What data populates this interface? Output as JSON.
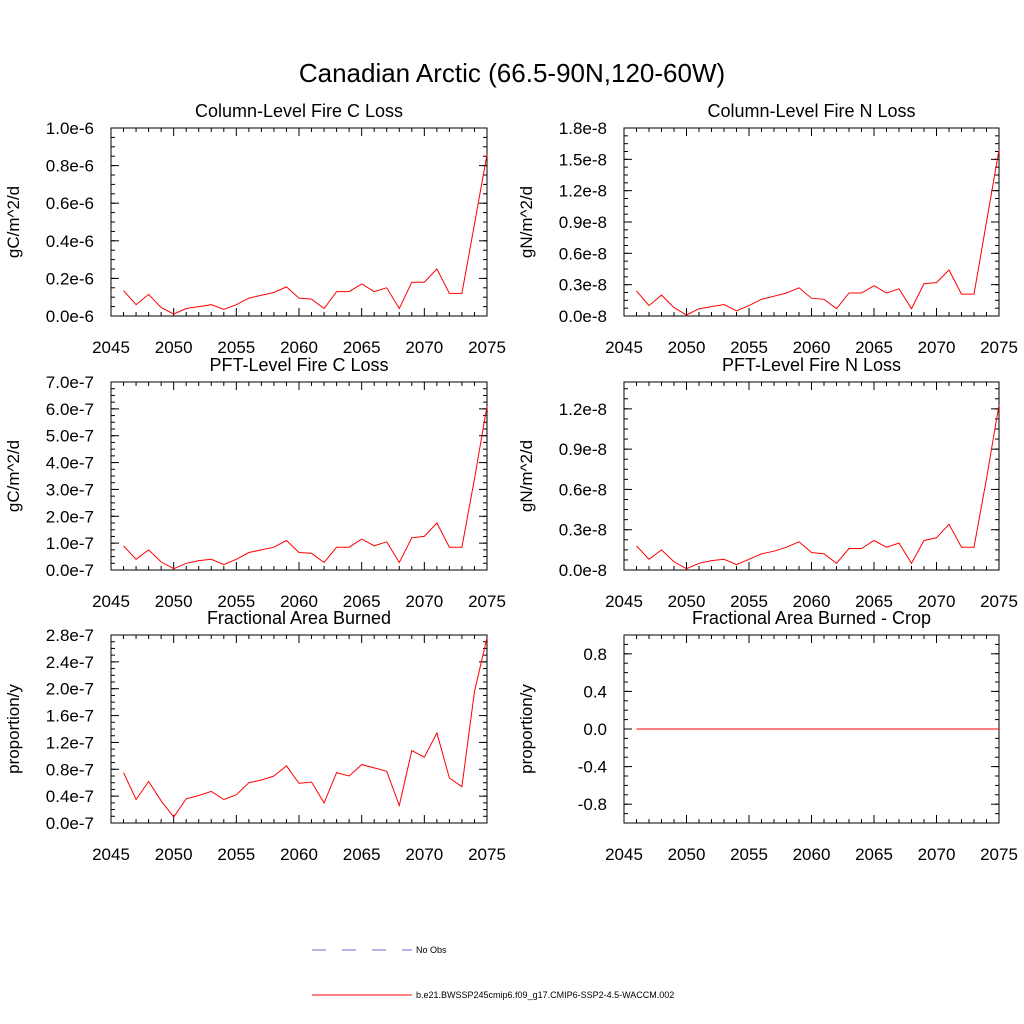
{
  "title": "Canadian Arctic (66.5-90N,120-60W)",
  "legend": [
    {
      "label": "No Obs",
      "color": "#6b6bd6",
      "style": "dashed"
    },
    {
      "label": "b.e21.BWSSP245cmip6.f09_g17.CMIP6-SSP2-4.5-WACCM.002",
      "color": "#ff0000",
      "style": "solid"
    }
  ],
  "chart_data": [
    {
      "type": "line",
      "title": "Column-Level Fire C Loss",
      "ylabel": "gC/m^2/d",
      "xlim": [
        2045,
        2075
      ],
      "ylim": [
        0,
        1e-06
      ],
      "xticks": [
        2045,
        2050,
        2055,
        2060,
        2065,
        2070,
        2075
      ],
      "xtick_labels": [
        "2045",
        "2050",
        "2055",
        "2060",
        "2065",
        "2070",
        "2075"
      ],
      "yticks": [
        0,
        2e-07,
        4e-07,
        6e-07,
        8e-07,
        1e-06
      ],
      "ytick_labels": [
        "0.0e-6",
        "0.2e-6",
        "0.4e-6",
        "0.6e-6",
        "0.8e-6",
        "1.0e-6"
      ],
      "series": [
        {
          "color": "#ff0000",
          "x": [
            2046,
            2047,
            2048,
            2049,
            2050,
            2051,
            2052,
            2053,
            2054,
            2055,
            2056,
            2057,
            2058,
            2059,
            2060,
            2061,
            2062,
            2063,
            2064,
            2065,
            2066,
            2067,
            2068,
            2069,
            2070,
            2071,
            2072,
            2073,
            2074,
            2075
          ],
          "y": [
            1.35e-07,
            6e-08,
            1.15e-07,
            4.5e-08,
            1e-08,
            4e-08,
            5e-08,
            6e-08,
            3.5e-08,
            6e-08,
            9.5e-08,
            1.1e-07,
            1.25e-07,
            1.55e-07,
            9.5e-08,
            9e-08,
            4e-08,
            1.3e-07,
            1.3e-07,
            1.7e-07,
            1.3e-07,
            1.5e-07,
            4e-08,
            1.8e-07,
            1.8e-07,
            2.5e-07,
            1.2e-07,
            1.2e-07,
            4.9e-07,
            8.6e-07
          ]
        }
      ]
    },
    {
      "type": "line",
      "title": "Column-Level Fire N Loss",
      "ylabel": "gN/m^2/d",
      "xlim": [
        2045,
        2075
      ],
      "ylim": [
        0,
        1.8e-08
      ],
      "xticks": [
        2045,
        2050,
        2055,
        2060,
        2065,
        2070,
        2075
      ],
      "xtick_labels": [
        "2045",
        "2050",
        "2055",
        "2060",
        "2065",
        "2070",
        "2075"
      ],
      "yticks": [
        0,
        3e-09,
        6e-09,
        9e-09,
        1.2e-08,
        1.5e-08,
        1.8e-08
      ],
      "ytick_labels": [
        "0.0e-8",
        "0.3e-8",
        "0.6e-8",
        "0.9e-8",
        "1.2e-8",
        "1.5e-8",
        "1.8e-8"
      ],
      "series": [
        {
          "color": "#ff0000",
          "x": [
            2046,
            2047,
            2048,
            2049,
            2050,
            2051,
            2052,
            2053,
            2054,
            2055,
            2056,
            2057,
            2058,
            2059,
            2060,
            2061,
            2062,
            2063,
            2064,
            2065,
            2066,
            2067,
            2068,
            2069,
            2070,
            2071,
            2072,
            2073,
            2074,
            2075
          ],
          "y": [
            2.4e-09,
            1e-09,
            2e-09,
            8e-10,
            1e-10,
            7e-10,
            9e-10,
            1.1e-09,
            5e-10,
            1e-09,
            1.6e-09,
            1.9e-09,
            2.2e-09,
            2.7e-09,
            1.7e-09,
            1.6e-09,
            7e-10,
            2.2e-09,
            2.2e-09,
            2.9e-09,
            2.2e-09,
            2.6e-09,
            7e-10,
            3.1e-09,
            3.2e-09,
            4.4e-09,
            2.1e-09,
            2.1e-09,
            9e-09,
            1.59e-08
          ]
        }
      ]
    },
    {
      "type": "line",
      "title": "PFT-Level Fire C Loss",
      "ylabel": "gC/m^2/d",
      "xlim": [
        2045,
        2075
      ],
      "ylim": [
        0,
        7e-07
      ],
      "xticks": [
        2045,
        2050,
        2055,
        2060,
        2065,
        2070,
        2075
      ],
      "xtick_labels": [
        "2045",
        "2050",
        "2055",
        "2060",
        "2065",
        "2070",
        "2075"
      ],
      "yticks": [
        0,
        1e-07,
        2e-07,
        3e-07,
        4e-07,
        5e-07,
        6e-07,
        7e-07
      ],
      "ytick_labels": [
        "0.0e-7",
        "1.0e-7",
        "2.0e-7",
        "3.0e-7",
        "4.0e-7",
        "5.0e-7",
        "6.0e-7",
        "7.0e-7"
      ],
      "series": [
        {
          "color": "#ff0000",
          "x": [
            2046,
            2047,
            2048,
            2049,
            2050,
            2051,
            2052,
            2053,
            2054,
            2055,
            2056,
            2057,
            2058,
            2059,
            2060,
            2061,
            2062,
            2063,
            2064,
            2065,
            2066,
            2067,
            2068,
            2069,
            2070,
            2071,
            2072,
            2073,
            2074,
            2075
          ],
          "y": [
            9e-08,
            4e-08,
            7.5e-08,
            3e-08,
            5e-09,
            2.5e-08,
            3.5e-08,
            4e-08,
            2e-08,
            4e-08,
            6.5e-08,
            7.5e-08,
            8.5e-08,
            1.1e-07,
            6.5e-08,
            6.2e-08,
            2.8e-08,
            8.5e-08,
            8.5e-08,
            1.15e-07,
            9e-08,
            1.05e-07,
            2.8e-08,
            1.2e-07,
            1.25e-07,
            1.75e-07,
            8.5e-08,
            8.5e-08,
            3.4e-07,
            6.1e-07
          ]
        }
      ]
    },
    {
      "type": "line",
      "title": "PFT-Level Fire N Loss",
      "ylabel": "gN/m^2/d",
      "xlim": [
        2045,
        2075
      ],
      "ylim": [
        0,
        1.4e-08
      ],
      "xticks": [
        2045,
        2050,
        2055,
        2060,
        2065,
        2070,
        2075
      ],
      "xtick_labels": [
        "2045",
        "2050",
        "2055",
        "2060",
        "2065",
        "2070",
        "2075"
      ],
      "yticks": [
        0,
        3e-09,
        6e-09,
        9e-09,
        1.2e-08
      ],
      "ytick_labels": [
        "0.0e-8",
        "0.3e-8",
        "0.6e-8",
        "0.9e-8",
        "1.2e-8"
      ],
      "series": [
        {
          "color": "#ff0000",
          "x": [
            2046,
            2047,
            2048,
            2049,
            2050,
            2051,
            2052,
            2053,
            2054,
            2055,
            2056,
            2057,
            2058,
            2059,
            2060,
            2061,
            2062,
            2063,
            2064,
            2065,
            2066,
            2067,
            2068,
            2069,
            2070,
            2071,
            2072,
            2073,
            2074,
            2075
          ],
          "y": [
            1.8e-09,
            8e-10,
            1.5e-09,
            6e-10,
            1e-10,
            5e-10,
            7e-10,
            8e-10,
            4e-10,
            8e-10,
            1.2e-09,
            1.4e-09,
            1.7e-09,
            2.1e-09,
            1.3e-09,
            1.2e-09,
            5e-10,
            1.6e-09,
            1.6e-09,
            2.2e-09,
            1.7e-09,
            2e-09,
            5e-10,
            2.2e-09,
            2.4e-09,
            3.4e-09,
            1.7e-09,
            1.7e-09,
            6.8e-09,
            1.23e-08
          ]
        }
      ]
    },
    {
      "type": "line",
      "title": "Fractional Area Burned",
      "ylabel": "proportion/y",
      "xlim": [
        2045,
        2075
      ],
      "ylim": [
        0,
        2.8e-07
      ],
      "xticks": [
        2045,
        2050,
        2055,
        2060,
        2065,
        2070,
        2075
      ],
      "xtick_labels": [
        "2045",
        "2050",
        "2055",
        "2060",
        "2065",
        "2070",
        "2075"
      ],
      "yticks": [
        0,
        4e-08,
        8e-08,
        1.2e-07,
        1.6e-07,
        2e-07,
        2.4e-07,
        2.8e-07
      ],
      "ytick_labels": [
        "0.0e-7",
        "0.4e-7",
        "0.8e-7",
        "1.2e-7",
        "1.6e-7",
        "2.0e-7",
        "2.4e-7",
        "2.8e-7"
      ],
      "series": [
        {
          "color": "#ff0000",
          "x": [
            2046,
            2047,
            2048,
            2049,
            2050,
            2051,
            2052,
            2053,
            2054,
            2055,
            2056,
            2057,
            2058,
            2059,
            2060,
            2061,
            2062,
            2063,
            2064,
            2065,
            2066,
            2067,
            2068,
            2069,
            2070,
            2071,
            2072,
            2073,
            2074,
            2075
          ],
          "y": [
            7.5e-08,
            3.5e-08,
            6.2e-08,
            3.3e-08,
            9e-09,
            3.6e-08,
            4.1e-08,
            4.7e-08,
            3.5e-08,
            4.2e-08,
            6e-08,
            6.4e-08,
            7e-08,
            8.5e-08,
            5.9e-08,
            6.1e-08,
            3e-08,
            7.5e-08,
            7e-08,
            8.7e-08,
            8.2e-08,
            7.7e-08,
            2.6e-08,
            1.08e-07,
            9.8e-08,
            1.34e-07,
            6.7e-08,
            5.4e-08,
            1.96e-07,
            2.76e-07
          ]
        }
      ]
    },
    {
      "type": "line",
      "title": "Fractional Area Burned - Crop",
      "ylabel": "proportion/y",
      "xlim": [
        2045,
        2075
      ],
      "ylim": [
        -1.0,
        1.0
      ],
      "xticks": [
        2045,
        2050,
        2055,
        2060,
        2065,
        2070,
        2075
      ],
      "xtick_labels": [
        "2045",
        "2050",
        "2055",
        "2060",
        "2065",
        "2070",
        "2075"
      ],
      "yticks": [
        -0.8,
        -0.4,
        0.0,
        0.4,
        0.8
      ],
      "ytick_labels": [
        "-0.8",
        "-0.4",
        "0.0",
        "0.4",
        "0.8"
      ],
      "series": [
        {
          "color": "#ff0000",
          "x": [
            2046,
            2075
          ],
          "y": [
            0,
            0
          ]
        }
      ]
    }
  ]
}
